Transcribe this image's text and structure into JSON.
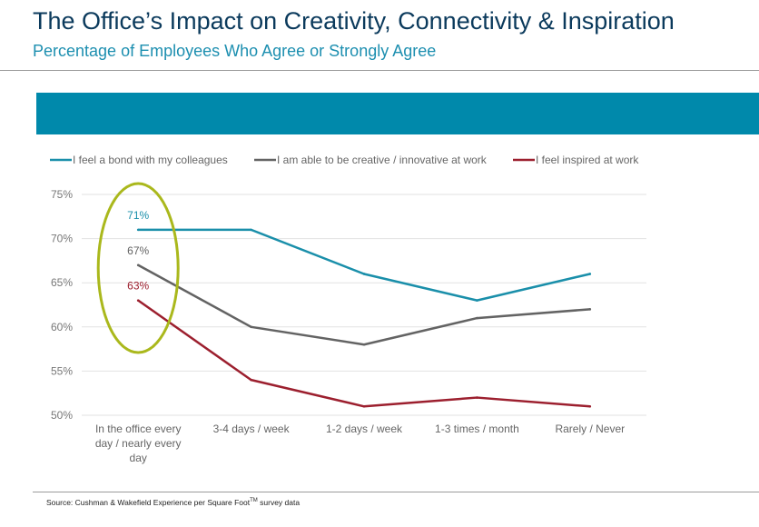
{
  "header": {
    "title": "The Office’s Impact on Creativity, Connectivity & Inspiration",
    "subtitle": "Percentage of Employees Who Agree or Strongly Agree"
  },
  "footer": {
    "source": "Source: Cushman & Wakefield Experience per Square Foot",
    "source_tm": "TM",
    "source_suffix": " survey data"
  },
  "chart_data": {
    "type": "line",
    "categories": [
      [
        "In the office every",
        "day / nearly every",
        "day"
      ],
      [
        "3-4 days / week"
      ],
      [
        "1-2 days / week"
      ],
      [
        "1-3 times / month"
      ],
      [
        "Rarely / Never"
      ]
    ],
    "ylim": [
      50,
      75
    ],
    "yticks": [
      50,
      55,
      60,
      65,
      70,
      75
    ],
    "ytick_suffix": "%",
    "grid": true,
    "legend_position": "top",
    "series": [
      {
        "name": "I feel a bond with my colleagues",
        "color": "#1a8faa",
        "values": [
          71,
          71,
          66,
          63,
          66
        ],
        "label": "71%"
      },
      {
        "name": "I am able to be creative / innovative at work",
        "color": "#636363",
        "values": [
          67,
          60,
          58,
          61,
          62
        ],
        "label": "67%"
      },
      {
        "name": "I feel inspired at work",
        "color": "#9c1f2e",
        "values": [
          63,
          54,
          51,
          52,
          51
        ],
        "label": "63%"
      }
    ],
    "highlight_color": "#aab81c"
  }
}
